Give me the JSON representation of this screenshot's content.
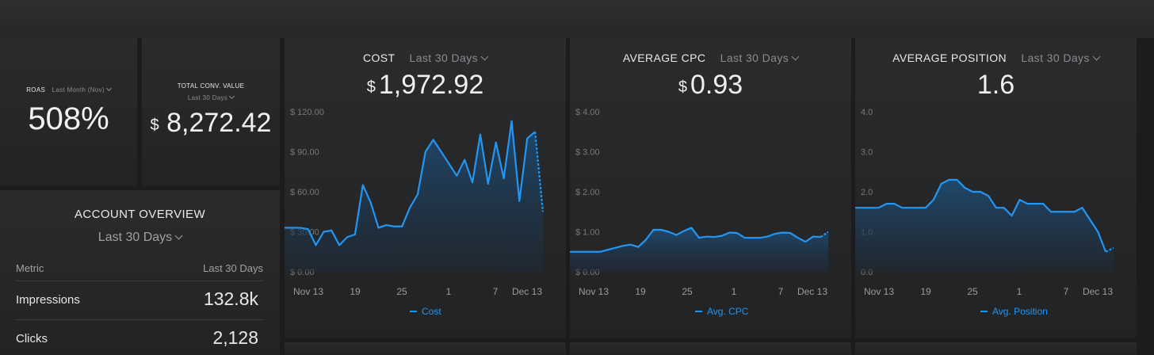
{
  "colors": {
    "accent": "#2196f3",
    "background": "#1c1c1e",
    "tile": "#252628"
  },
  "roas": {
    "title": "ROAS",
    "range": "Last Month (Nov)",
    "value": "508%"
  },
  "total_conv_value": {
    "title": "TOTAL CONV. VALUE",
    "range": "Last 30 Days",
    "currency": "$",
    "value": "8,272.42"
  },
  "account_overview": {
    "title": "ACCOUNT OVERVIEW",
    "range": "Last 30 Days",
    "columns": [
      "Metric",
      "Last 30 Days"
    ],
    "rows": [
      {
        "metric": "Impressions",
        "value": "132.8k"
      },
      {
        "metric": "Clicks",
        "value": "2,128"
      }
    ]
  },
  "cost_widget": {
    "title": "COST",
    "range": "Last 30 Days",
    "currency": "$",
    "value": "1,972.92"
  },
  "cpc_widget": {
    "title": "AVERAGE CPC",
    "range": "Last 30 Days",
    "currency": "$",
    "value": "0.93"
  },
  "position_widget": {
    "title": "AVERAGE POSITION",
    "range": "Last 30 Days",
    "value": "1.6"
  },
  "chart_data": [
    {
      "type": "area",
      "x_ticks": [
        "Nov 13",
        "19",
        "25",
        "1",
        "7",
        "Dec 13"
      ],
      "y_ticks": [
        "$ 0.00",
        "$ 30.00",
        "$ 60.00",
        "$ 90.00",
        "$ 120.00"
      ],
      "ylim": [
        0,
        120
      ],
      "legend": "Cost",
      "series": [
        {
          "name": "Cost",
          "values": [
            33,
            33,
            33,
            32,
            20,
            30,
            31,
            20,
            26,
            28,
            65,
            52,
            33,
            35,
            34,
            34,
            48,
            58,
            90,
            99,
            90,
            81,
            72,
            84,
            67,
            103,
            66,
            97,
            70,
            113,
            53,
            100,
            105,
            45
          ]
        }
      ]
    },
    {
      "type": "area",
      "x_ticks": [
        "Nov 13",
        "19",
        "25",
        "1",
        "7",
        "Dec 13"
      ],
      "y_ticks": [
        "$ 0.00",
        "$ 1.00",
        "$ 2.00",
        "$ 3.00",
        "$ 4.00"
      ],
      "ylim": [
        0,
        4
      ],
      "legend": "Avg. CPC",
      "series": [
        {
          "name": "Avg. CPC",
          "values": [
            0.5,
            0.5,
            0.5,
            0.5,
            0.5,
            0.55,
            0.6,
            0.65,
            0.68,
            0.62,
            0.8,
            1.05,
            1.05,
            1.0,
            0.92,
            1.02,
            1.1,
            0.85,
            0.88,
            0.87,
            0.9,
            0.98,
            0.97,
            0.85,
            0.85,
            0.85,
            0.88,
            0.95,
            0.98,
            0.97,
            0.85,
            0.75,
            0.88,
            0.87,
            1.0
          ]
        }
      ]
    },
    {
      "type": "area",
      "x_ticks": [
        "Nov 13",
        "19",
        "25",
        "1",
        "7",
        "Dec 13"
      ],
      "y_ticks": [
        "0.0",
        "1.0",
        "2.0",
        "3.0",
        "4.0"
      ],
      "ylim": [
        0,
        4
      ],
      "legend": "Avg. Position",
      "series": [
        {
          "name": "Avg. Position",
          "values": [
            1.6,
            1.6,
            1.6,
            1.6,
            1.7,
            1.7,
            1.6,
            1.6,
            1.6,
            1.6,
            1.8,
            2.2,
            2.3,
            2.3,
            2.1,
            2.0,
            2.0,
            1.9,
            1.6,
            1.6,
            1.4,
            1.8,
            1.7,
            1.7,
            1.7,
            1.5,
            1.5,
            1.5,
            1.5,
            1.6,
            1.3,
            1.0,
            0.5,
            0.6
          ]
        }
      ]
    }
  ]
}
